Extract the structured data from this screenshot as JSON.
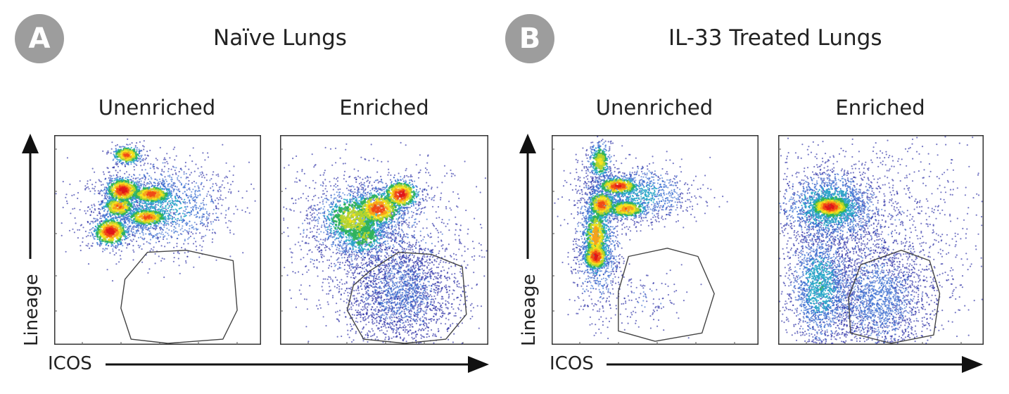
{
  "panels": [
    {
      "badge": "A",
      "title": "Naïve Lungs"
    },
    {
      "badge": "B",
      "title": "IL-33 Treated Lungs"
    }
  ],
  "xlabel": "ICOS",
  "ylabel": "Lineage",
  "gate_color": "#444444",
  "palette": [
    "#2d2fa6",
    "#3b6fd1",
    "#2aa9c9",
    "#2fb35b",
    "#b7d42c",
    "#f6e21e",
    "#f7a11a",
    "#f14a17",
    "#e0161a"
  ],
  "chart_data": [
    {
      "type": "scatter",
      "title": "Unenriched",
      "panel": "A",
      "xlabel": "ICOS",
      "ylabel": "Lineage",
      "xlim": [
        0,
        1
      ],
      "ylim": [
        0,
        1
      ],
      "clusters": [
        {
          "cx": 0.35,
          "cy": 0.91,
          "sx": 0.04,
          "sy": 0.025,
          "n": 300,
          "heat": 0.85
        },
        {
          "cx": 0.33,
          "cy": 0.74,
          "sx": 0.05,
          "sy": 0.035,
          "n": 500,
          "heat": 1.0
        },
        {
          "cx": 0.47,
          "cy": 0.72,
          "sx": 0.06,
          "sy": 0.025,
          "n": 450,
          "heat": 0.9
        },
        {
          "cx": 0.31,
          "cy": 0.66,
          "sx": 0.05,
          "sy": 0.03,
          "n": 350,
          "heat": 0.8
        },
        {
          "cx": 0.45,
          "cy": 0.61,
          "sx": 0.06,
          "sy": 0.025,
          "n": 400,
          "heat": 0.85
        },
        {
          "cx": 0.27,
          "cy": 0.54,
          "sx": 0.05,
          "sy": 0.04,
          "n": 550,
          "heat": 1.0
        },
        {
          "cx": 0.5,
          "cy": 0.66,
          "sx": 0.18,
          "sy": 0.11,
          "n": 1500,
          "heat": 0.25
        }
      ],
      "gate": [
        [
          0.45,
          0.44
        ],
        [
          0.64,
          0.45
        ],
        [
          0.87,
          0.4
        ],
        [
          0.89,
          0.16
        ],
        [
          0.82,
          0.02
        ],
        [
          0.55,
          0.0
        ],
        [
          0.37,
          0.02
        ],
        [
          0.32,
          0.17
        ],
        [
          0.34,
          0.31
        ]
      ]
    },
    {
      "type": "scatter",
      "title": "Enriched",
      "panel": "A",
      "xlabel": "ICOS",
      "ylabel": "Lineage",
      "xlim": [
        0,
        1
      ],
      "ylim": [
        0,
        1
      ],
      "clusters": [
        {
          "cx": 0.47,
          "cy": 0.65,
          "sx": 0.07,
          "sy": 0.05,
          "n": 650,
          "heat": 0.9
        },
        {
          "cx": 0.58,
          "cy": 0.72,
          "sx": 0.05,
          "sy": 0.04,
          "n": 450,
          "heat": 1.0
        },
        {
          "cx": 0.35,
          "cy": 0.6,
          "sx": 0.1,
          "sy": 0.08,
          "n": 1000,
          "heat": 0.55
        },
        {
          "cx": 0.4,
          "cy": 0.52,
          "sx": 0.08,
          "sy": 0.06,
          "n": 500,
          "heat": 0.45
        },
        {
          "cx": 0.58,
          "cy": 0.25,
          "sx": 0.14,
          "sy": 0.14,
          "n": 2400,
          "heat": 0.08
        },
        {
          "cx": 0.45,
          "cy": 0.55,
          "sx": 0.25,
          "sy": 0.18,
          "n": 900,
          "heat": 0.12
        }
      ],
      "gate": [
        [
          0.43,
          0.35
        ],
        [
          0.57,
          0.44
        ],
        [
          0.73,
          0.43
        ],
        [
          0.88,
          0.37
        ],
        [
          0.9,
          0.14
        ],
        [
          0.8,
          0.02
        ],
        [
          0.6,
          0.0
        ],
        [
          0.4,
          0.02
        ],
        [
          0.32,
          0.16
        ],
        [
          0.35,
          0.28
        ]
      ]
    },
    {
      "type": "scatter",
      "title": "Unenriched",
      "panel": "B",
      "xlabel": "ICOS",
      "ylabel": "Lineage",
      "xlim": [
        0,
        1
      ],
      "ylim": [
        0,
        1
      ],
      "clusters": [
        {
          "cx": 0.23,
          "cy": 0.88,
          "sx": 0.03,
          "sy": 0.05,
          "n": 350,
          "heat": 0.6
        },
        {
          "cx": 0.32,
          "cy": 0.76,
          "sx": 0.06,
          "sy": 0.025,
          "n": 400,
          "heat": 0.95
        },
        {
          "cx": 0.24,
          "cy": 0.67,
          "sx": 0.04,
          "sy": 0.04,
          "n": 400,
          "heat": 0.9
        },
        {
          "cx": 0.36,
          "cy": 0.65,
          "sx": 0.06,
          "sy": 0.025,
          "n": 400,
          "heat": 0.8
        },
        {
          "cx": 0.21,
          "cy": 0.52,
          "sx": 0.035,
          "sy": 0.08,
          "n": 450,
          "heat": 0.8
        },
        {
          "cx": 0.21,
          "cy": 0.42,
          "sx": 0.035,
          "sy": 0.04,
          "n": 450,
          "heat": 1.0
        },
        {
          "cx": 0.22,
          "cy": 0.5,
          "sx": 0.06,
          "sy": 0.17,
          "n": 1000,
          "heat": 0.3
        },
        {
          "cx": 0.42,
          "cy": 0.72,
          "sx": 0.14,
          "sy": 0.07,
          "n": 900,
          "heat": 0.25
        },
        {
          "cx": 0.45,
          "cy": 0.2,
          "sx": 0.1,
          "sy": 0.08,
          "n": 120,
          "heat": 0.05
        }
      ],
      "gate": [
        [
          0.37,
          0.42
        ],
        [
          0.56,
          0.46
        ],
        [
          0.71,
          0.42
        ],
        [
          0.79,
          0.24
        ],
        [
          0.73,
          0.05
        ],
        [
          0.5,
          0.01
        ],
        [
          0.32,
          0.06
        ],
        [
          0.32,
          0.25
        ]
      ]
    },
    {
      "type": "scatter",
      "title": "Enriched",
      "panel": "B",
      "xlabel": "ICOS",
      "ylabel": "Lineage",
      "xlim": [
        0,
        1
      ],
      "ylim": [
        0,
        1
      ],
      "clusters": [
        {
          "cx": 0.25,
          "cy": 0.66,
          "sx": 0.06,
          "sy": 0.03,
          "n": 700,
          "heat": 1.0
        },
        {
          "cx": 0.25,
          "cy": 0.66,
          "sx": 0.13,
          "sy": 0.09,
          "n": 1600,
          "heat": 0.35
        },
        {
          "cx": 0.2,
          "cy": 0.28,
          "sx": 0.08,
          "sy": 0.15,
          "n": 1700,
          "heat": 0.28
        },
        {
          "cx": 0.48,
          "cy": 0.22,
          "sx": 0.14,
          "sy": 0.14,
          "n": 2000,
          "heat": 0.12
        },
        {
          "cx": 0.45,
          "cy": 0.5,
          "sx": 0.3,
          "sy": 0.3,
          "n": 1300,
          "heat": 0.04
        }
      ],
      "gate": [
        [
          0.4,
          0.38
        ],
        [
          0.6,
          0.45
        ],
        [
          0.74,
          0.4
        ],
        [
          0.79,
          0.24
        ],
        [
          0.76,
          0.04
        ],
        [
          0.55,
          0.0
        ],
        [
          0.35,
          0.05
        ],
        [
          0.34,
          0.22
        ]
      ]
    }
  ]
}
